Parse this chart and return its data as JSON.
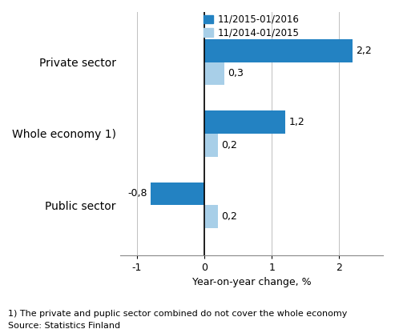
{
  "categories": [
    "Private sector",
    "Whole economy 1)",
    "Public sector"
  ],
  "series_2015_2016": [
    2.2,
    1.2,
    -0.8
  ],
  "series_2014_2015": [
    0.3,
    0.2,
    0.2
  ],
  "color_2015_2016": "#2382c2",
  "color_2014_2015": "#a8cfe8",
  "legend_labels": [
    "11/2015-01/2016",
    "11/2014-01/2015"
  ],
  "xlabel": "Year-on-year change, %",
  "xlim": [
    -1.25,
    2.65
  ],
  "xticks": [
    -1,
    0,
    1,
    2
  ],
  "bar_height": 0.32,
  "footnote1": "1) The private and puplic sector combined do not cover the whole economy",
  "footnote2": "Source: Statistics Finland",
  "value_labels_2015_2016": [
    "2,2",
    "1,2",
    "-0,8"
  ],
  "value_labels_2014_2015": [
    "0,3",
    "0,2",
    "0,2"
  ]
}
